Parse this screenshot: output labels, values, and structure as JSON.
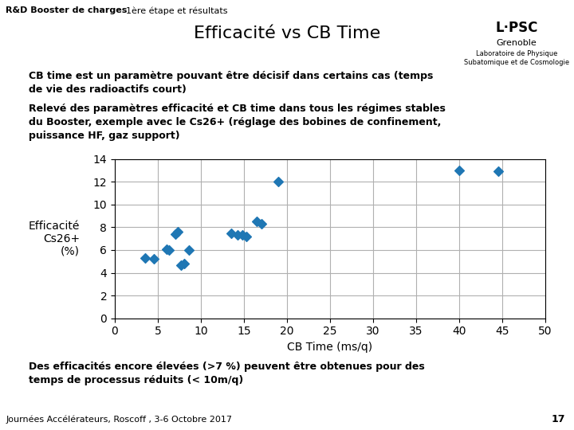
{
  "chart_data": {
    "type": "scatter",
    "title": "Efficacité vs CB Time",
    "x_label": "CB Time (ms/q)",
    "y_label": "Efficacité\nCs26+\n(%)",
    "x": [
      3.5,
      4.5,
      6.0,
      6.3,
      7.0,
      7.3,
      7.7,
      8.1,
      8.6,
      13.5,
      14.3,
      14.8,
      15.3,
      16.5,
      17.0,
      19.0,
      40.0,
      44.5
    ],
    "values": [
      5.3,
      5.2,
      6.1,
      6.0,
      7.4,
      7.6,
      4.7,
      4.8,
      6.0,
      7.5,
      7.3,
      7.3,
      7.2,
      8.5,
      8.3,
      12.0,
      13.0,
      12.9
    ],
    "marker": "diamond",
    "xlim": [
      0,
      50
    ],
    "ylim": [
      0,
      14
    ],
    "xticks": [
      0,
      5,
      10,
      15,
      20,
      25,
      30,
      35,
      40,
      45,
      50
    ],
    "yticks": [
      0,
      2,
      4,
      6,
      8,
      10,
      12,
      14
    ],
    "grid": true,
    "annotations": [
      "R&D Booster de charges",
      "1ère étape et résultats",
      "L·PSC",
      "Grenoble",
      "Laboratoire de Physique\nSubatomique et de Cosmologie",
      "CB time est un paramètre pouvant être décisif dans certains cas (temps",
      "de vie des radioactifs court)",
      "Relevé des paramètres efficacité et CB time dans tous les régimes stables",
      "du Booster, exemple avec le Cs26+ (réglage des bobines de confinement,",
      "puissance HF, gaz support)",
      "Des efficacités encore élevées (>7 %) peuvent être obtenues pour des",
      "temps de processus réduits (< 10m/q)",
      "Journées Accélérateurs, Roscoff , 3-6 Octobre 2017",
      "17"
    ]
  }
}
